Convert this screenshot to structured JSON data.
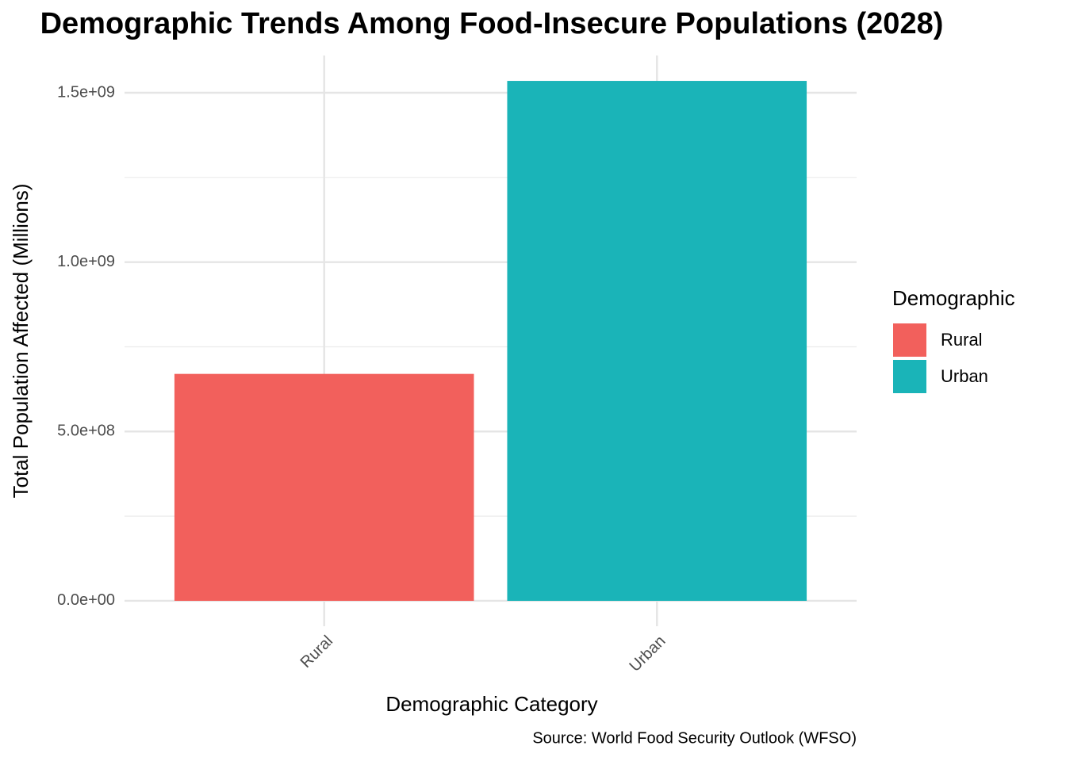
{
  "chart_data": {
    "type": "bar",
    "title": "Demographic Trends Among Food-Insecure Populations (2028)",
    "x_label": "Demographic Category",
    "y_label": "Total Population Affected (Millions)",
    "caption": "Source: World Food Security Outlook (WFSO)",
    "categories": [
      "Rural",
      "Urban"
    ],
    "values": [
      670000000,
      1535000000
    ],
    "colors": [
      "#F2605C",
      "#1AB4B8"
    ],
    "ylim": [
      -75000000,
      1610000000
    ],
    "yticks": [
      {
        "value": 0,
        "label": "0.0e+00"
      },
      {
        "value": 500000000,
        "label": "5.0e+08"
      },
      {
        "value": 1000000000,
        "label": "1.0e+09"
      },
      {
        "value": 1500000000,
        "label": "1.5e+09"
      }
    ],
    "grid": true,
    "legend": {
      "title": "Demographic",
      "position": "right"
    }
  }
}
